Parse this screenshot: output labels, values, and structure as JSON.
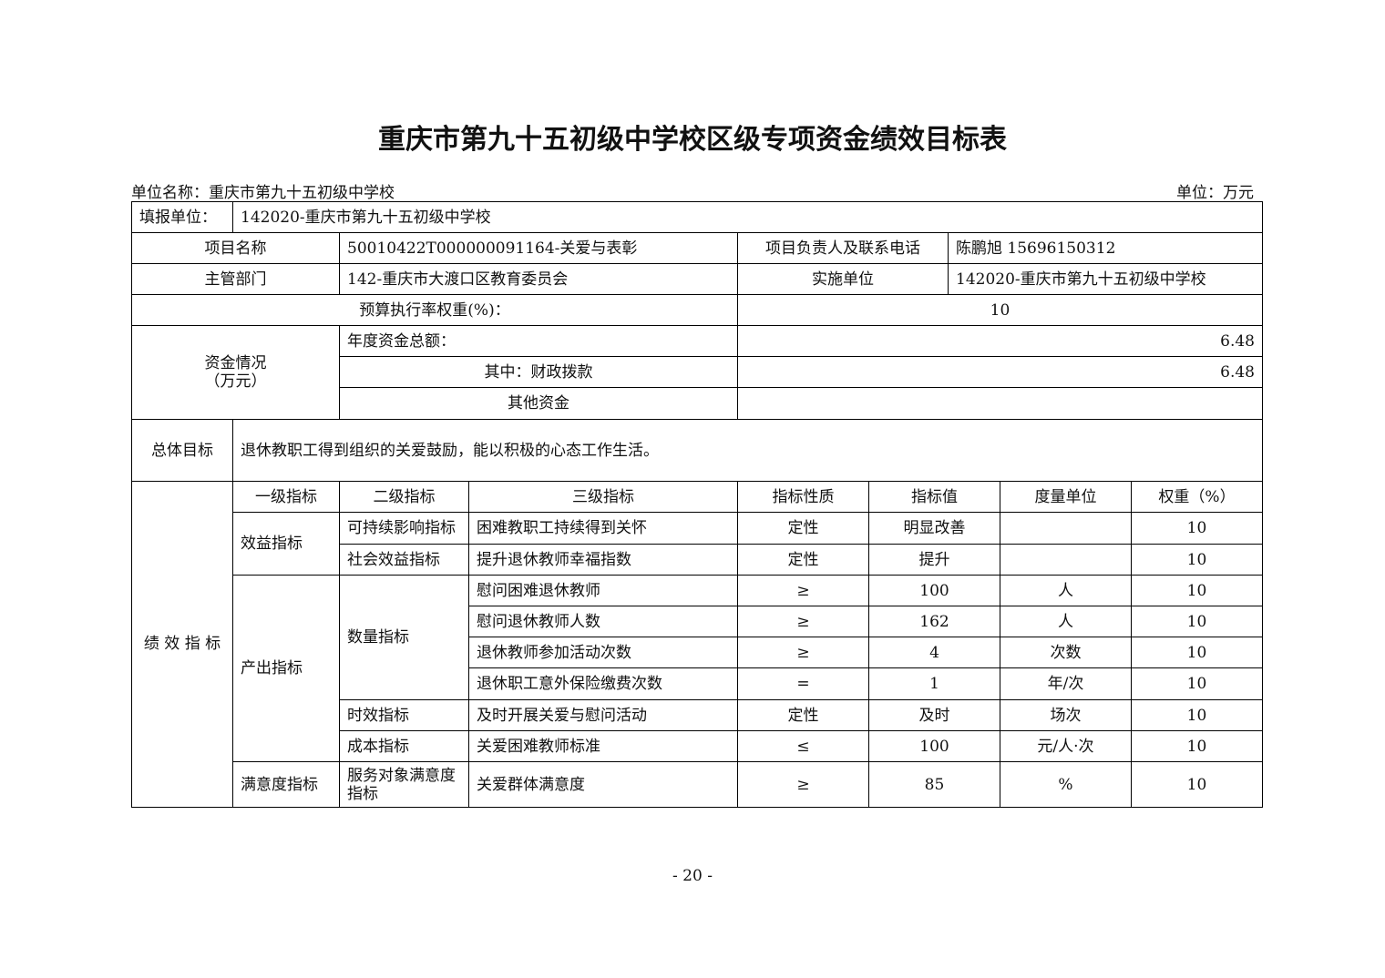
{
  "title": "重庆市第九十五初级中学校区级专项资金绩效目标表",
  "unit_name": "单位名称：重庆市第九十五初级中学校",
  "unit_measure": "单位：万元",
  "fill_unit_label": "填报单位：",
  "fill_unit_value": "142020-重庆市第九十五初级中学校",
  "project_name_label": "项目名称",
  "project_name_value": "50010422T000000091164-关爱与表彰",
  "contact_label": "项目负责人及联系电话",
  "contact_value": "陈鹏旭 15696150312",
  "dept_label": "主管部门",
  "dept_value": "142-重庆市大渡口区教育委员会",
  "impl_label": "实施单位",
  "impl_value": "142020-重庆市第九十五初级中学校",
  "budget_rate_label": "预算执行率权重(%)：",
  "budget_rate_value": "10",
  "funds_label": "资金情况",
  "funds_unit": "（万元）",
  "annual_total_label": "年度资金总额：",
  "annual_total_value": "6.48",
  "fiscal_label": "其中：财政拨款",
  "fiscal_value": "6.48",
  "other_label": "其他资金",
  "other_value": "",
  "goal_label": "总体目标",
  "goal_value": "退休教职工得到组织的关爱鼓励，能以积极的心态工作生活。",
  "perf_label": "绩\n效\n指\n标",
  "headers": [
    "一级指标",
    "二级指标",
    "三级指标",
    "指标性质",
    "指标值",
    "度量单位",
    "权重（%）"
  ],
  "groups": {
    "benefit": "效益指标",
    "output": "产出指标",
    "satisfaction": "满意度指标",
    "sustain": "可持续影响指标",
    "social": "社会效益指标",
    "quantity": "数量指标",
    "timeliness": "时效指标",
    "cost": "成本指标",
    "service": "服务对象满意度指标"
  },
  "rows": [
    {
      "l3": "困难教职工持续得到关怀",
      "nature": "定性",
      "value": "明显改善",
      "unit": "",
      "weight": "10"
    },
    {
      "l3": "提升退休教师幸福指数",
      "nature": "定性",
      "value": "提升",
      "unit": "",
      "weight": "10"
    },
    {
      "l3": "慰问困难退休教师",
      "nature": "≥",
      "value": "100",
      "unit": "人",
      "weight": "10"
    },
    {
      "l3": "慰问退休教师人数",
      "nature": "≥",
      "value": "162",
      "unit": "人",
      "weight": "10"
    },
    {
      "l3": "退休教师参加活动次数",
      "nature": "≥",
      "value": "4",
      "unit": "次数",
      "weight": "10"
    },
    {
      "l3": "退休职工意外保险缴费次数",
      "nature": "=",
      "value": "1",
      "unit": "年/次",
      "weight": "10"
    },
    {
      "l3": "及时开展关爱与慰问活动",
      "nature": "定性",
      "value": "及时",
      "unit": "场次",
      "weight": "10"
    },
    {
      "l3": "关爱困难教师标准",
      "nature": "≤",
      "value": "100",
      "unit": "元/人·次",
      "weight": "10"
    },
    {
      "l3": "关爱群体满意度",
      "nature": "≥",
      "value": "85",
      "unit": "%",
      "weight": "10"
    }
  ],
  "page_number": "- 20 -"
}
